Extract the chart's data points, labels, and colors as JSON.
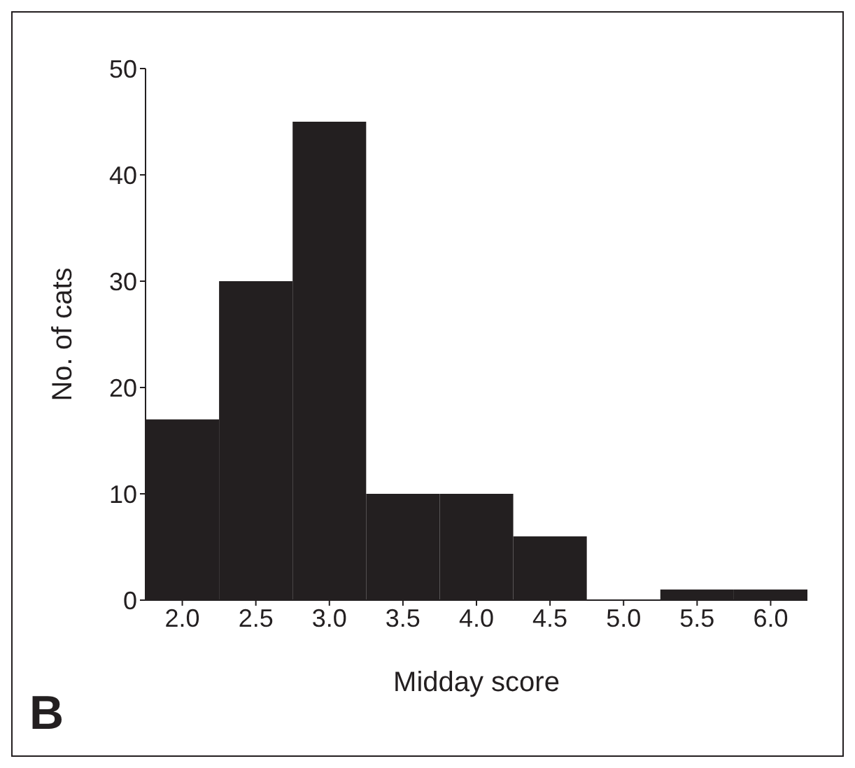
{
  "chart_data": {
    "type": "histogram",
    "xlabel": "Midday score",
    "ylabel": "No. of cats",
    "annotations": [
      "B"
    ],
    "bins": [
      1.75,
      2.25,
      2.75,
      3.25,
      3.75,
      4.25,
      4.75,
      5.25,
      5.75,
      6.25
    ],
    "values": [
      17,
      30,
      45,
      10,
      10,
      6,
      0,
      1,
      1
    ],
    "color": "#231f20",
    "xlim": [
      1.75,
      6.25
    ],
    "xticks": [
      {
        "value": 2,
        "label": "2.0"
      },
      {
        "value": 2.5,
        "label": "2.5"
      },
      {
        "value": 3,
        "label": "3.0"
      },
      {
        "value": 3.5,
        "label": "3.5"
      },
      {
        "value": 4,
        "label": "4.0"
      },
      {
        "value": 4.5,
        "label": "4.5"
      },
      {
        "value": 5,
        "label": "5.0"
      },
      {
        "value": 5.5,
        "label": "5.5"
      },
      {
        "value": 6,
        "label": "6.0"
      }
    ],
    "ylim": [
      0,
      50
    ],
    "yticks": [
      0,
      10,
      20,
      30,
      40,
      50
    ],
    "grid": false,
    "legend": false
  }
}
